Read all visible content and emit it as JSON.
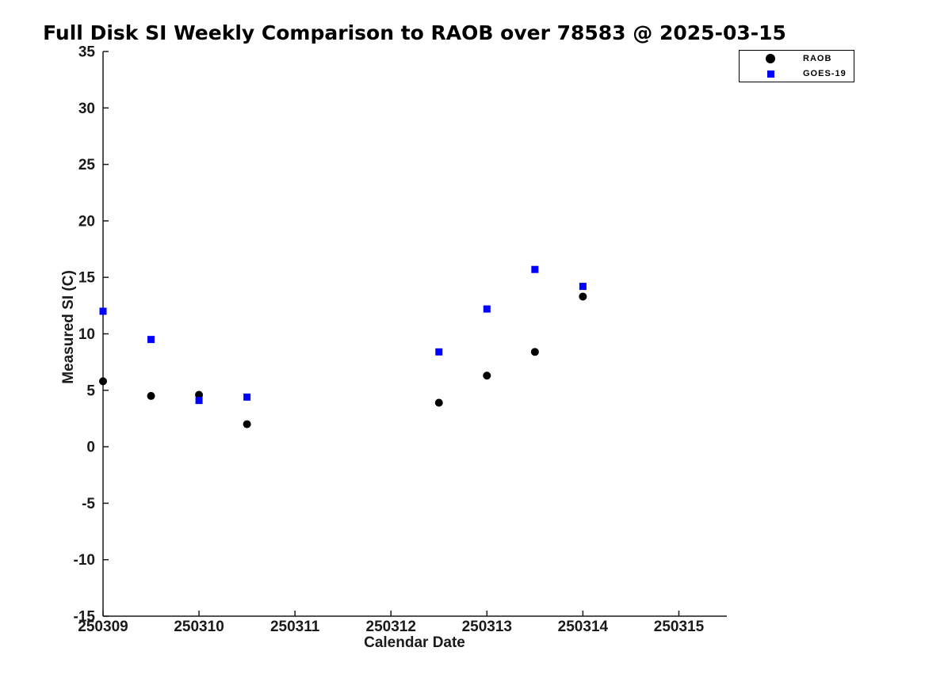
{
  "figure": {
    "background": "#ffffff"
  },
  "chart_data": {
    "type": "scatter",
    "title": "Full Disk SI Weekly Comparison to RAOB over 78583 @ 2025-03-15",
    "xlabel": "Calendar Date",
    "ylabel": "Measured SI (C)",
    "xlim": [
      250309,
      250315.5
    ],
    "ylim": [
      -15,
      35
    ],
    "xticks": [
      250309,
      250310,
      250311,
      250312,
      250313,
      250314,
      250315
    ],
    "xtick_labels": [
      "250309",
      "250310",
      "250311",
      "250312",
      "250313",
      "250314",
      "250315"
    ],
    "yticks": [
      35,
      30,
      25,
      20,
      15,
      10,
      5,
      0,
      -5,
      -10,
      -15
    ],
    "ytick_labels": [
      "35",
      "30",
      "25",
      "20",
      "15",
      "10",
      "5",
      "0",
      "-5",
      "-10",
      "-15"
    ],
    "grid": false,
    "legend_position": "top-right",
    "axis_color": "#1a1a1a",
    "series": [
      {
        "name": "RAOB",
        "marker": "circle",
        "color": "#000000",
        "points": [
          [
            250309.0,
            5.8
          ],
          [
            250309.5,
            4.5
          ],
          [
            250310.0,
            4.6
          ],
          [
            250310.5,
            2.0
          ],
          [
            250312.5,
            3.9
          ],
          [
            250313.0,
            6.3
          ],
          [
            250313.5,
            8.4
          ],
          [
            250314.0,
            13.3
          ]
        ]
      },
      {
        "name": "GOES-19",
        "marker": "square",
        "color": "#0000ff",
        "points": [
          [
            250309.0,
            12.0
          ],
          [
            250309.5,
            9.5
          ],
          [
            250310.0,
            4.1
          ],
          [
            250310.5,
            4.4
          ],
          [
            250312.5,
            8.4
          ],
          [
            250313.0,
            12.2
          ],
          [
            250313.5,
            15.7
          ],
          [
            250314.0,
            14.2
          ]
        ]
      }
    ]
  }
}
